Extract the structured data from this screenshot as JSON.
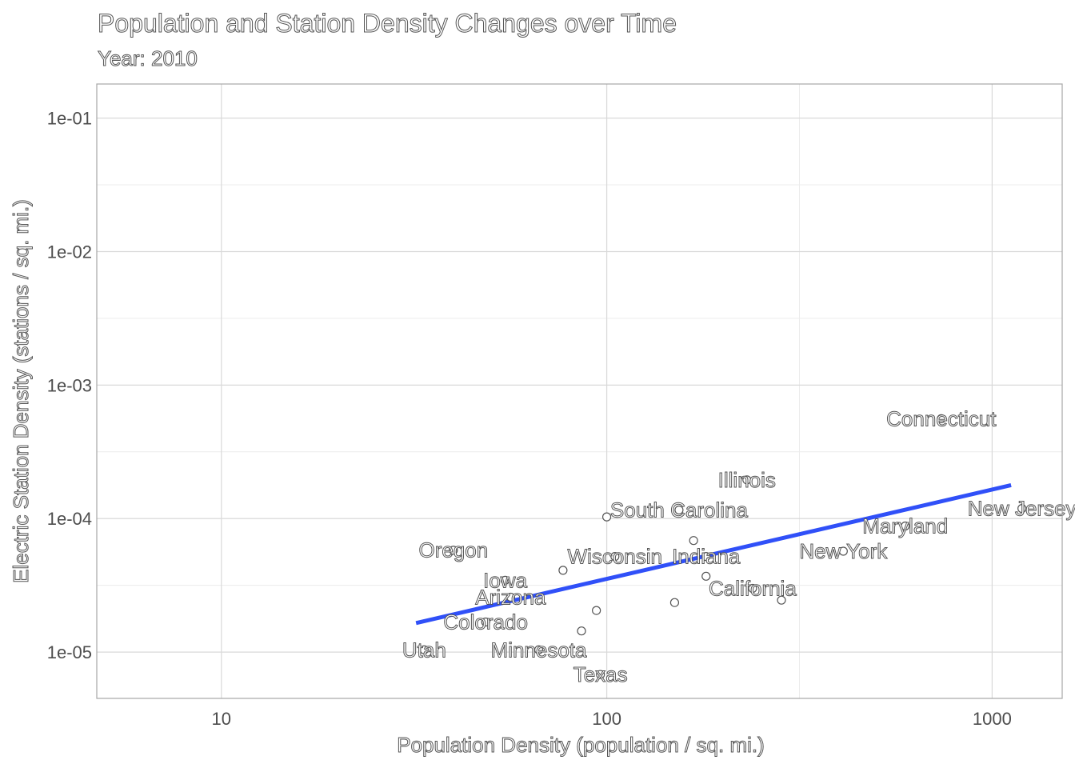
{
  "chart_data": {
    "type": "scatter",
    "title": "Population and Station Density Changes over Time",
    "subtitle": "Year: 2010",
    "xlabel": "Population Density (population / sq. mi.)",
    "ylabel": "Electric Station Density (stations / sq. mi.)",
    "x_scale": "log",
    "y_scale": "log",
    "xlim": [
      4.75,
      1520
    ],
    "ylim": [
      4.5e-06,
      0.18
    ],
    "x_ticks": [
      {
        "value": 10,
        "label": "10"
      },
      {
        "value": 100,
        "label": "100"
      },
      {
        "value": 1000,
        "label": "1000"
      }
    ],
    "y_ticks": [
      {
        "value": 0.1,
        "label": "1e-01"
      },
      {
        "value": 0.01,
        "label": "1e-02"
      },
      {
        "value": 0.001,
        "label": "1e-03"
      },
      {
        "value": 0.0001,
        "label": "1e-04"
      },
      {
        "value": 1e-05,
        "label": "1e-05"
      }
    ],
    "grid": true,
    "points": [
      {
        "label": "Connecticut",
        "x": 738,
        "y": 0.00056
      },
      {
        "label": "Illinois",
        "x": 231,
        "y": 0.000195
      },
      {
        "label": "South Carolina",
        "x": 154,
        "y": 0.000116
      },
      {
        "label": "New Jersey",
        "x": 1195,
        "y": 0.000119
      },
      {
        "label": "Maryland",
        "x": 595,
        "y": 8.8e-05
      },
      {
        "label": "New York",
        "x": 411,
        "y": 5.7e-05
      },
      {
        "label": "Oregon",
        "x": 40,
        "y": 5.8e-05
      },
      {
        "label": "Wisconsin",
        "x": 105,
        "y": 5.2e-05
      },
      {
        "label": "Indiana",
        "x": 181,
        "y": 5.2e-05
      },
      {
        "label": "California",
        "x": 239,
        "y": 3e-05
      },
      {
        "label": "Iowa",
        "x": 54.5,
        "y": 3.45e-05
      },
      {
        "label": "Arizona",
        "x": 56.3,
        "y": 2.58e-05
      },
      {
        "label": "Colorado",
        "x": 48.5,
        "y": 1.68e-05
      },
      {
        "label": "Utah",
        "x": 33.6,
        "y": 1.04e-05
      },
      {
        "label": "Minnesota",
        "x": 66.6,
        "y": 1.04e-05
      },
      {
        "label": "Texas",
        "x": 96.3,
        "y": 6.8e-06
      },
      {
        "label": "",
        "x": 94,
        "y": 2.05e-05
      },
      {
        "label": "",
        "x": 150,
        "y": 2.35e-05
      },
      {
        "label": "",
        "x": 86,
        "y": 1.44e-05
      },
      {
        "label": "",
        "x": 77,
        "y": 4.1e-05
      },
      {
        "label": "",
        "x": 100,
        "y": 0.000103
      },
      {
        "label": "",
        "x": 168,
        "y": 6.85e-05
      },
      {
        "label": "",
        "x": 181,
        "y": 3.7e-05
      },
      {
        "label": "",
        "x": 284,
        "y": 2.45e-05
      }
    ],
    "trend_line": {
      "x": [
        32,
        1120
      ],
      "y": [
        1.65e-05,
        0.000178
      ],
      "color": "#3050f8"
    },
    "colors": {
      "point_fill": "#ffffff",
      "point_stroke": "#555555",
      "trend": "#3050f8"
    }
  }
}
